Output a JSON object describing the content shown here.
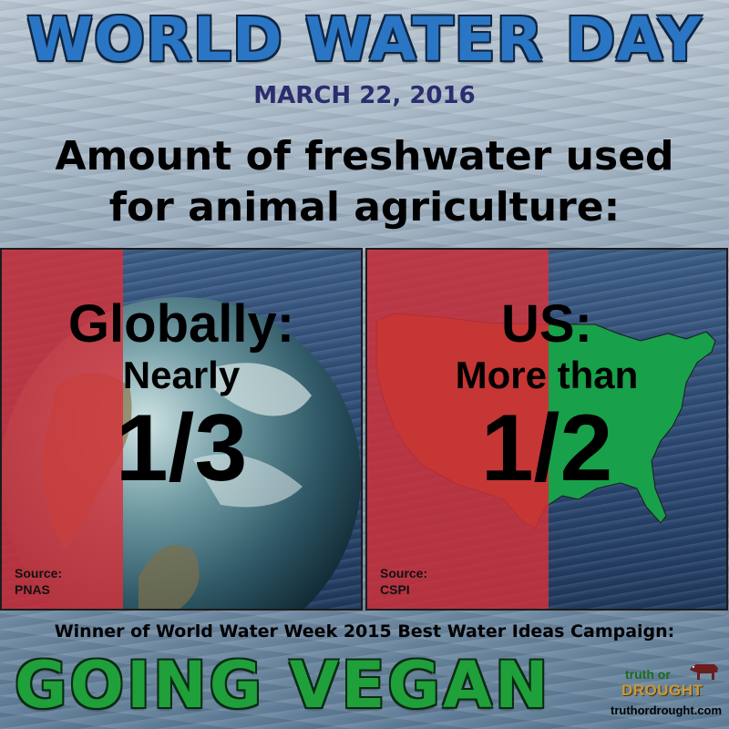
{
  "header": {
    "title": "WORLD WATER DAY",
    "date": "MARCH 22, 2016",
    "headline_line1": "Amount of freshwater used",
    "headline_line2": "for animal agriculture:"
  },
  "panels": [
    {
      "label": "Globally:",
      "qualifier": "Nearly",
      "value": "1/3",
      "source_label": "Source:",
      "source": "PNAS",
      "share": 0.333
    },
    {
      "label": "US:",
      "qualifier": "More than",
      "value": "1/2",
      "source_label": "Source:",
      "source": "CSPI",
      "share": 0.5
    }
  ],
  "footer": {
    "winner": "Winner of World Water Week 2015 Best Water Ideas Campaign:",
    "slogan": "GOING VEGAN"
  },
  "logo": {
    "truth": "truth or",
    "drought": "DROUGHT",
    "url": "truthordrought.com"
  },
  "colors": {
    "title_blue": "#2a76c4",
    "date_navy": "#2b2d6e",
    "highlight_red": "#d6323a",
    "us_brown": "#7a4a1e",
    "us_green": "#19a04a",
    "slogan_green": "#1fa03a"
  }
}
